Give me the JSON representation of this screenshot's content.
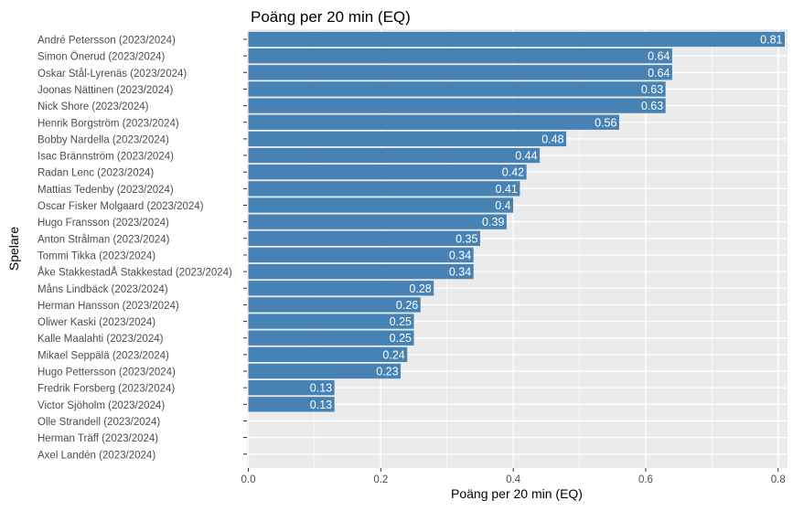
{
  "chart_data": {
    "type": "bar",
    "orientation": "horizontal",
    "title": "Poäng per 20 min (EQ)",
    "xlabel": "Poäng per 20 min (EQ)",
    "ylabel": "Spelare",
    "xlim": [
      0,
      0.81
    ],
    "xticks": [
      "0.0",
      "0.2",
      "0.4",
      "0.6",
      "0.8"
    ],
    "xtick_values": [
      0,
      0.2,
      0.4,
      0.6,
      0.8
    ],
    "grid": true,
    "bar_color": "#4682B4",
    "panel_color": "#EBEBEB",
    "categories": [
      "André Petersson (2023/2024)",
      "Simon Önerud (2023/2024)",
      "Oskar Stål-Lyrenäs (2023/2024)",
      "Joonas Nättinen (2023/2024)",
      "Nick Shore (2023/2024)",
      "Henrik Borgström (2023/2024)",
      "Bobby Nardella (2023/2024)",
      "Isac Brännström (2023/2024)",
      "Radan Lenc (2023/2024)",
      "Mattias Tedenby (2023/2024)",
      "Oscar Fisker Molgaard (2023/2024)",
      "Hugo Fransson (2023/2024)",
      "Anton Strålman (2023/2024)",
      "Tommi Tikka (2023/2024)",
      "Åke StakkestadÅ Stakkestad (2023/2024)",
      "Måns Lindbäck (2023/2024)",
      "Herman Hansson (2023/2024)",
      "Oliwer Kaski (2023/2024)",
      "Kalle Maalahti (2023/2024)",
      "Mikael Seppälä (2023/2024)",
      "Hugo Pettersson (2023/2024)",
      "Fredrik Forsberg (2023/2024)",
      "Victor Sjöholm (2023/2024)",
      "Olle Strandell (2023/2024)",
      "Herman Träff (2023/2024)",
      "Axel Landén (2023/2024)"
    ],
    "values": [
      0.81,
      0.64,
      0.64,
      0.63,
      0.63,
      0.56,
      0.48,
      0.44,
      0.42,
      0.41,
      0.4,
      0.39,
      0.35,
      0.34,
      0.34,
      0.28,
      0.26,
      0.25,
      0.25,
      0.24,
      0.23,
      0.13,
      0.13,
      null,
      null,
      null
    ],
    "value_labels": [
      "0.81",
      "0.64",
      "0.64",
      "0.63",
      "0.63",
      "0.56",
      "0.48",
      "0.44",
      "0.42",
      "0.41",
      "0.4",
      "0.39",
      "0.35",
      "0.34",
      "0.34",
      "0.28",
      "0.26",
      "0.25",
      "0.25",
      "0.24",
      "0.23",
      "0.13",
      "0.13",
      "",
      "",
      ""
    ]
  }
}
